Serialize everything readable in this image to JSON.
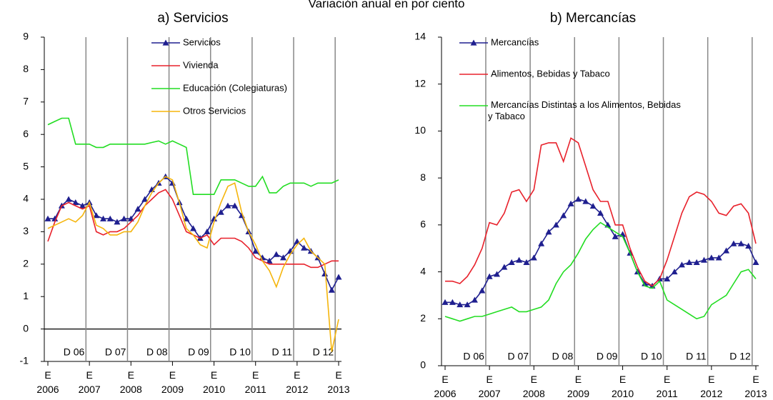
{
  "title": "Variación anual en por ciento",
  "chart_data": [
    {
      "type": "line",
      "title": "a) Servicios",
      "legend": "upper center",
      "categories": [
        "E 2006",
        null,
        null,
        null,
        null,
        null,
        "E 2007",
        null,
        null,
        null,
        null,
        null,
        "E 2008",
        null,
        null,
        null,
        null,
        null,
        "E 2009",
        null,
        null,
        null,
        null,
        null,
        "E 2010",
        null,
        null,
        null,
        null,
        null,
        "E 2011",
        null,
        null,
        null,
        null,
        null,
        "E 2012",
        null,
        null,
        null,
        null,
        null,
        "E 2013"
      ],
      "annotations": [
        "D 06",
        "D 07",
        "D 08",
        "D 09",
        "D 10",
        "D 11",
        "D 12"
      ],
      "ylim": [
        -1,
        9
      ],
      "yticks": [
        -1,
        0,
        1,
        2,
        3,
        4,
        5,
        6,
        7,
        8,
        9
      ],
      "series": [
        {
          "name": "Servicios",
          "color": "#1f1f8f",
          "marker": "triangle",
          "values": [
            3.4,
            3.4,
            3.8,
            4.0,
            3.9,
            3.8,
            3.9,
            3.5,
            3.4,
            3.4,
            3.3,
            3.4,
            3.4,
            3.7,
            4.0,
            4.3,
            4.5,
            4.7,
            4.5,
            3.9,
            3.4,
            3.1,
            2.8,
            3.0,
            3.4,
            3.6,
            3.8,
            3.8,
            3.5,
            3.0,
            2.4,
            2.2,
            2.1,
            2.3,
            2.2,
            2.4,
            2.7,
            2.5,
            2.4,
            2.2,
            1.7,
            1.2,
            1.6
          ]
        },
        {
          "name": "Vivienda",
          "color": "#e8212b",
          "values": [
            2.7,
            3.3,
            3.8,
            3.9,
            3.8,
            3.7,
            3.8,
            3.0,
            2.9,
            3.0,
            3.0,
            3.1,
            3.3,
            3.5,
            3.8,
            4.0,
            4.2,
            4.3,
            4.0,
            3.5,
            3.0,
            2.9,
            2.8,
            2.9,
            2.6,
            2.8,
            2.8,
            2.8,
            2.7,
            2.5,
            2.2,
            2.1,
            2.0,
            2.0,
            2.0,
            2.0,
            2.0,
            2.0,
            1.9,
            1.9,
            2.0,
            2.1,
            2.1
          ]
        },
        {
          "name": "Educación (Colegiaturas)",
          "color": "#22dd22",
          "values": [
            6.3,
            6.4,
            6.5,
            6.5,
            5.7,
            5.7,
            5.7,
            5.6,
            5.6,
            5.7,
            5.7,
            5.7,
            5.7,
            5.7,
            5.7,
            5.75,
            5.8,
            5.7,
            5.8,
            5.7,
            5.6,
            4.15,
            4.15,
            4.15,
            4.15,
            4.6,
            4.6,
            4.6,
            4.5,
            4.4,
            4.4,
            4.7,
            4.2,
            4.2,
            4.4,
            4.5,
            4.5,
            4.5,
            4.4,
            4.5,
            4.5,
            4.5,
            4.6
          ]
        },
        {
          "name": "Otros Servicios",
          "color": "#f5b50c",
          "values": [
            3.1,
            3.2,
            3.3,
            3.4,
            3.3,
            3.5,
            3.9,
            3.2,
            3.1,
            2.9,
            2.9,
            3.0,
            3.0,
            3.3,
            3.8,
            4.2,
            4.5,
            4.7,
            4.6,
            3.9,
            3.1,
            2.9,
            2.6,
            2.5,
            3.3,
            3.9,
            4.4,
            4.5,
            3.6,
            3.0,
            2.6,
            2.1,
            1.8,
            1.3,
            1.9,
            2.3,
            2.6,
            2.8,
            2.4,
            2.2,
            2.0,
            -0.7,
            0.3
          ]
        }
      ]
    },
    {
      "type": "line",
      "title": "b) Mercancías",
      "legend": "upper left",
      "categories": [
        "E 2006",
        null,
        null,
        null,
        null,
        null,
        "E 2007",
        null,
        null,
        null,
        null,
        null,
        "E 2008",
        null,
        null,
        null,
        null,
        null,
        "E 2009",
        null,
        null,
        null,
        null,
        null,
        "E 2010",
        null,
        null,
        null,
        null,
        null,
        "E 2011",
        null,
        null,
        null,
        null,
        null,
        "E 2012",
        null,
        null,
        null,
        null,
        null,
        "E 2013"
      ],
      "annotations": [
        "D 06",
        "D 07",
        "D 08",
        "D 09",
        "D 10",
        "D 11",
        "D 12"
      ],
      "ylim": [
        0,
        14
      ],
      "yticks": [
        0,
        2,
        4,
        6,
        8,
        10,
        12,
        14
      ],
      "series": [
        {
          "name": "Mercancías",
          "color": "#1f1f8f",
          "marker": "triangle",
          "values": [
            2.7,
            2.7,
            2.6,
            2.6,
            2.8,
            3.2,
            3.8,
            3.9,
            4.2,
            4.4,
            4.5,
            4.4,
            4.6,
            5.2,
            5.7,
            6.0,
            6.4,
            6.9,
            7.1,
            7.0,
            6.8,
            6.5,
            6.0,
            5.5,
            5.6,
            4.8,
            4.0,
            3.5,
            3.4,
            3.7,
            3.7,
            4.0,
            4.3,
            4.4,
            4.4,
            4.5,
            4.6,
            4.6,
            4.9,
            5.2,
            5.2,
            5.1,
            4.4
          ]
        },
        {
          "name": "Alimentos, Bebidas y Tabaco",
          "color": "#e8212b",
          "values": [
            3.6,
            3.6,
            3.5,
            3.8,
            4.3,
            5.0,
            6.1,
            6.0,
            6.5,
            7.4,
            7.5,
            7.0,
            7.5,
            9.4,
            9.5,
            9.5,
            8.7,
            9.7,
            9.5,
            8.5,
            7.5,
            7.0,
            7.0,
            6.0,
            6.0,
            5.0,
            4.2,
            3.6,
            3.4,
            3.7,
            4.5,
            5.5,
            6.5,
            7.2,
            7.4,
            7.3,
            7.0,
            6.5,
            6.4,
            6.8,
            6.9,
            6.5,
            5.2
          ]
        },
        {
          "name": "Mercancías Distintas a los Alimentos, Bebidas y Tabaco",
          "color": "#22dd22",
          "values": [
            2.1,
            2.0,
            1.9,
            2.0,
            2.1,
            2.1,
            2.2,
            2.3,
            2.4,
            2.5,
            2.3,
            2.3,
            2.4,
            2.5,
            2.8,
            3.5,
            4.0,
            4.3,
            4.8,
            5.4,
            5.8,
            6.1,
            5.9,
            5.7,
            5.5,
            4.8,
            4.0,
            3.4,
            3.3,
            3.6,
            2.8,
            2.6,
            2.4,
            2.2,
            2.0,
            2.1,
            2.6,
            2.8,
            3.0,
            3.5,
            4.0,
            4.1,
            3.7
          ]
        }
      ]
    }
  ]
}
